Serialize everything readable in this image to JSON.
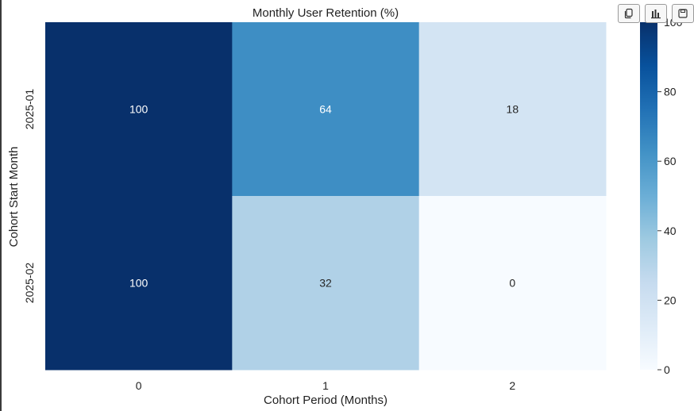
{
  "toolbar": {
    "buttons": [
      {
        "icon": "copy-icon"
      },
      {
        "icon": "chart-icon"
      },
      {
        "icon": "save-icon"
      }
    ]
  },
  "chart_data": {
    "type": "heatmap",
    "title": "Monthly User Retention (%)",
    "xlabel": "Cohort Period (Months)",
    "ylabel": "Cohort Start Month",
    "x": [
      "0",
      "1",
      "2"
    ],
    "y": [
      "2025-01",
      "2025-02"
    ],
    "values": [
      [
        100,
        64,
        18
      ],
      [
        100,
        32,
        0
      ]
    ],
    "colormap": "Blues",
    "vmin": 0,
    "vmax": 100,
    "colorbar_ticks": [
      0,
      20,
      40,
      60,
      80,
      100
    ],
    "annotations": true
  }
}
